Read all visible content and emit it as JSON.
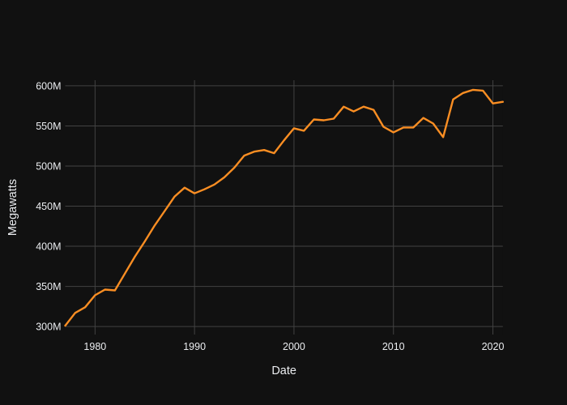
{
  "chart": {
    "xlabel": "Date",
    "ylabel": "Megawatts"
  },
  "chart_data": {
    "type": "line",
    "title": "",
    "xlabel": "Date",
    "ylabel": "Megawatts",
    "legend": false,
    "grid": true,
    "theme": "dark",
    "colors": {
      "line": "#fa8e23",
      "background": "#111111",
      "grid": "#424242",
      "text": "#ebedf0"
    },
    "xlim": [
      1977,
      2021
    ],
    "ylim": [
      290,
      607
    ],
    "x_ticks": {
      "values": [
        1980,
        1990,
        2000,
        2010,
        2020
      ],
      "labels": [
        "1980",
        "1990",
        "2000",
        "2010",
        "2020"
      ]
    },
    "y_ticks": {
      "values": [
        300,
        350,
        400,
        450,
        500,
        550,
        600
      ],
      "labels": [
        "300M",
        "350M",
        "400M",
        "450M",
        "500M",
        "550M",
        "600M"
      ]
    },
    "x": [
      1977,
      1978,
      1979,
      1980,
      1981,
      1982,
      1983,
      1984,
      1985,
      1986,
      1987,
      1988,
      1989,
      1990,
      1991,
      1992,
      1993,
      1994,
      1995,
      1996,
      1997,
      1998,
      1999,
      2000,
      2001,
      2002,
      2003,
      2004,
      2005,
      2006,
      2007,
      2008,
      2009,
      2010,
      2011,
      2012,
      2013,
      2014,
      2015,
      2016,
      2017,
      2018,
      2019,
      2020,
      2021
    ],
    "series": [
      {
        "name": "Megawatts",
        "values": [
          301,
          317,
          324,
          339,
          346,
          345,
          366,
          387,
          406,
          426,
          444,
          462,
          473,
          466,
          471,
          477,
          486,
          498,
          513,
          518,
          520,
          516,
          532,
          547,
          544,
          558,
          557,
          559,
          574,
          568,
          574,
          570,
          549,
          542,
          548,
          548,
          560,
          553,
          536,
          583,
          591,
          595,
          594,
          578,
          580
        ]
      }
    ]
  }
}
